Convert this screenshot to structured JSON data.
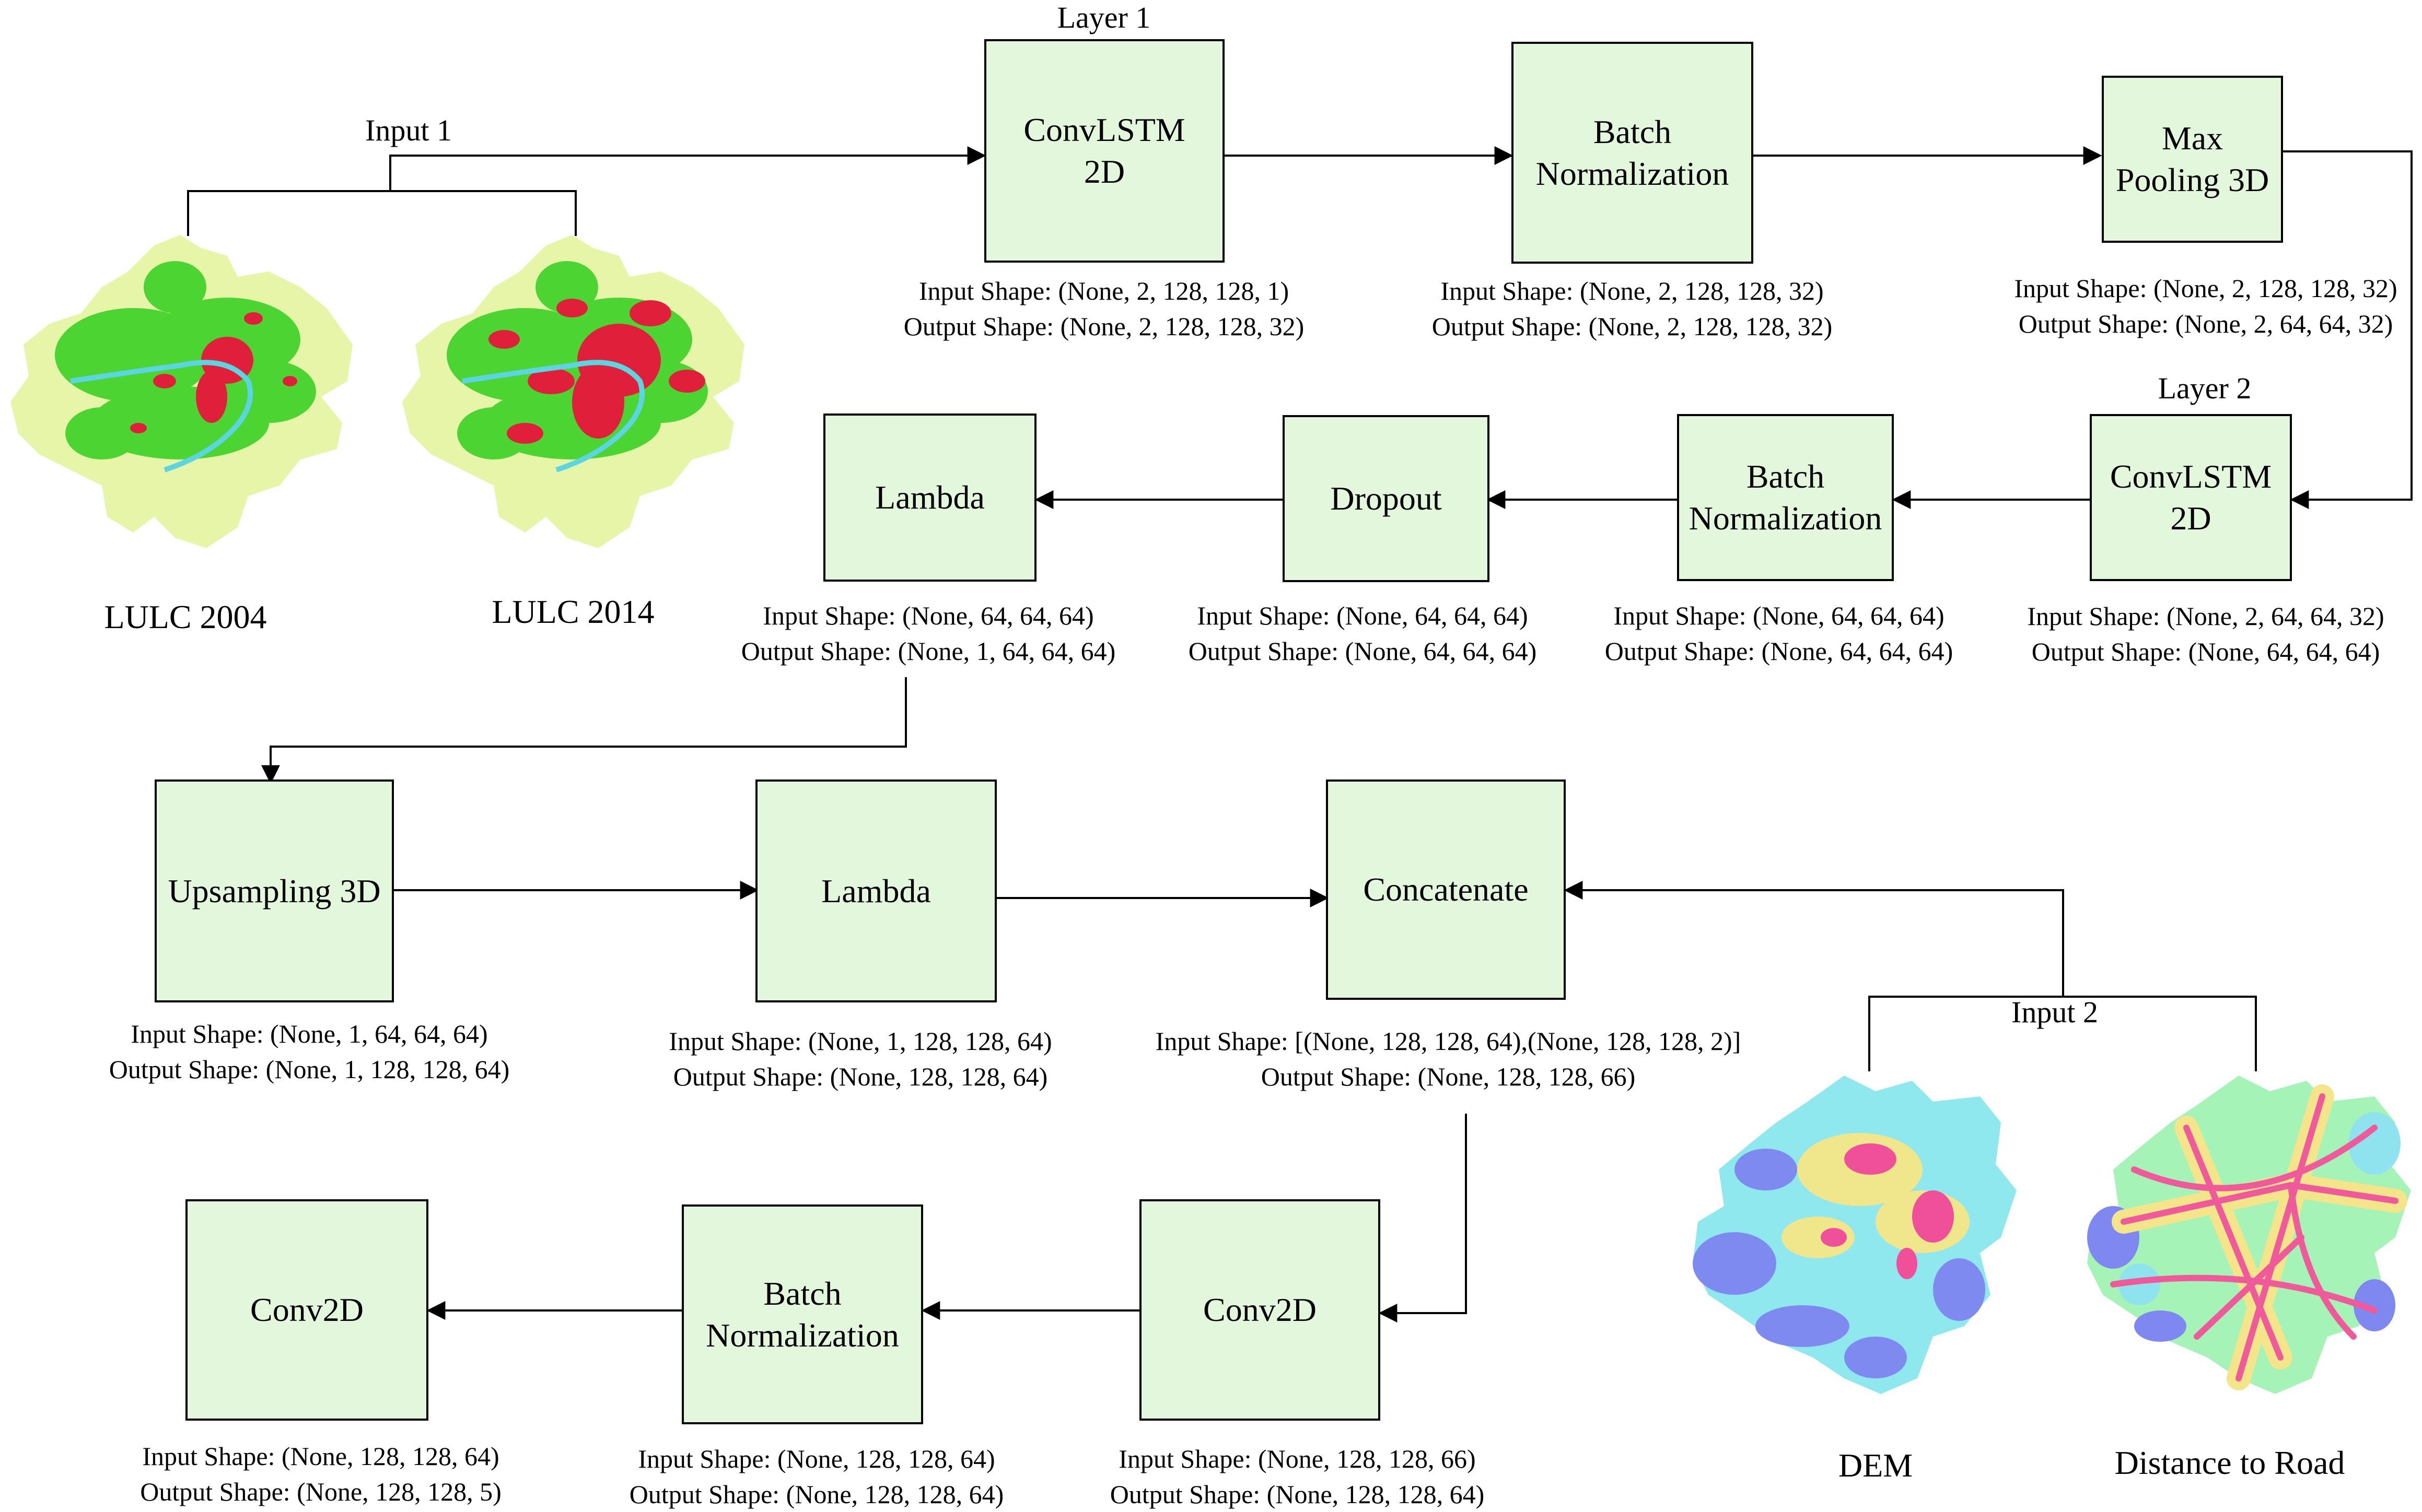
{
  "layers": {
    "layer1": "Layer 1",
    "layer2": "Layer 2",
    "input1": "Input 1",
    "input2": "Input 2"
  },
  "blocks": {
    "convlstm1": "ConvLSTM\n2D",
    "bn1": "Batch\nNormalization",
    "maxpool": "Max\nPooling 3D",
    "convlstm2": "ConvLSTM\n2D",
    "bn2": "Batch\nNormalization",
    "dropout": "Dropout",
    "lambda1": "Lambda",
    "upsampling": "Upsampling 3D",
    "lambda2": "Lambda",
    "concat": "Concatenate",
    "conv2d1": "Conv2D",
    "bn3": "Batch\nNormalization",
    "conv2d2": "Conv2D"
  },
  "shapes": {
    "convlstm1": {
      "in": "Input Shape: (None, 2, 128, 128, 1)",
      "out": "Output Shape: (None, 2, 128, 128, 32)"
    },
    "bn1": {
      "in": "Input Shape: (None, 2, 128, 128, 32)",
      "out": "Output Shape: (None, 2, 128, 128, 32)"
    },
    "maxpool": {
      "in": "Input Shape: (None, 2, 128, 128, 32)",
      "out": "Output Shape: (None, 2, 64, 64, 32)"
    },
    "convlstm2": {
      "in": "Input Shape: (None, 2, 64, 64, 32)",
      "out": "Output Shape: (None, 64, 64, 64)"
    },
    "bn2": {
      "in": "Input Shape: (None, 64, 64, 64)",
      "out": "Output Shape: (None, 64, 64, 64)"
    },
    "dropout": {
      "in": "Input Shape: (None, 64, 64, 64)",
      "out": "Output Shape: (None, 64, 64, 64)"
    },
    "lambda1": {
      "in": "Input Shape: (None, 64, 64, 64)",
      "out": "Output Shape: (None, 1, 64, 64, 64)"
    },
    "upsampling": {
      "in": "Input Shape: (None, 1, 64, 64, 64)",
      "out": "Output Shape: (None, 1, 128, 128, 64)"
    },
    "lambda2": {
      "in": "Input Shape: (None, 1, 128, 128, 64)",
      "out": "Output Shape: (None, 128, 128, 64)"
    },
    "concat": {
      "in": "Input Shape: [(None, 128, 128, 64),(None, 128, 128, 2)]",
      "out": "Output Shape: (None, 128, 128, 66)"
    },
    "conv2d1": {
      "in": "Input Shape: (None, 128, 128, 66)",
      "out": "Output Shape: (None, 128, 128, 64)"
    },
    "bn3": {
      "in": "Input Shape: (None, 128, 128, 64)",
      "out": "Output Shape: (None, 128, 128, 64)"
    },
    "conv2d2": {
      "in": "Input Shape: (None, 128, 128, 64)",
      "out": "Output Shape: (None, 128, 128, 5)"
    }
  },
  "maps": {
    "lulc2004": "LULC 2004",
    "lulc2014": "LULC 2014",
    "dem": "DEM",
    "road": "Distance to Road"
  },
  "colors": {
    "block_fill": "#e2f7dc",
    "lulc_base": "#e6f5a8",
    "lulc_green": "#4cd433",
    "lulc_red": "#e0203a",
    "lulc_water": "#5bd6e0",
    "dem_blue": "#7f8af0",
    "dem_cyan": "#8ee8ee",
    "dem_yellow": "#f0e68c",
    "dem_pink": "#f0509a",
    "road_pink": "#ef5a9a",
    "road_band1": "#f4e48a",
    "road_band2": "#a6f3b8",
    "road_band3": "#8ee3ee",
    "road_band4": "#7e88f0"
  }
}
